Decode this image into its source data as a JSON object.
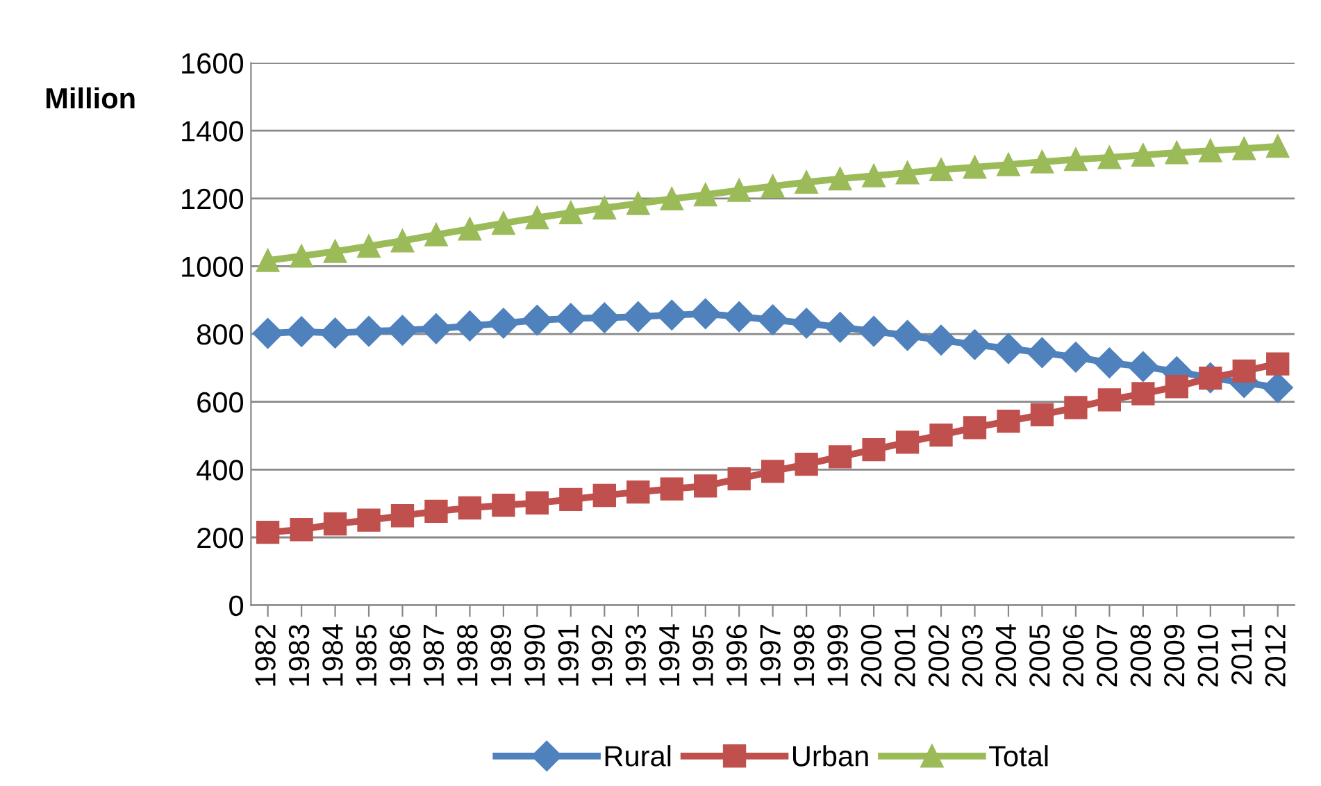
{
  "chart_data": {
    "type": "line",
    "ylabel": "Million",
    "categories": [
      "1982",
      "1983",
      "1984",
      "1985",
      "1986",
      "1987",
      "1988",
      "1989",
      "1990",
      "1991",
      "1992",
      "1993",
      "1994",
      "1995",
      "1996",
      "1997",
      "1998",
      "1999",
      "2000",
      "2001",
      "2002",
      "2003",
      "2004",
      "2005",
      "2006",
      "2007",
      "2008",
      "2009",
      "2010",
      "2011",
      "2012"
    ],
    "series": [
      {
        "name": "Rural",
        "color": "#4f81bd",
        "marker": "diamond",
        "values": [
          802,
          807,
          803,
          808,
          811,
          816,
          824,
          832,
          841,
          846,
          848,
          851,
          856,
          860,
          851,
          842,
          832,
          820,
          808,
          796,
          782,
          769,
          757,
          745,
          732,
          715,
          704,
          689,
          671,
          657,
          642
        ]
      },
      {
        "name": "Urban",
        "color": "#c0504d",
        "marker": "square",
        "values": [
          215,
          223,
          240,
          251,
          264,
          277,
          287,
          295,
          302,
          312,
          324,
          334,
          343,
          352,
          373,
          395,
          416,
          438,
          459,
          481,
          502,
          524,
          543,
          562,
          583,
          606,
          624,
          645,
          670,
          691,
          712
        ]
      },
      {
        "name": "Total",
        "color": "#9bbb59",
        "marker": "triangle",
        "values": [
          1017,
          1030,
          1044,
          1059,
          1075,
          1093,
          1110,
          1127,
          1143,
          1158,
          1172,
          1185,
          1199,
          1211,
          1224,
          1236,
          1248,
          1258,
          1267,
          1276,
          1285,
          1292,
          1300,
          1308,
          1315,
          1321,
          1328,
          1335,
          1341,
          1347,
          1354
        ]
      }
    ],
    "ylim": [
      0,
      1600
    ],
    "yticks": [
      0,
      200,
      400,
      600,
      800,
      1000,
      1200,
      1400,
      1600
    ],
    "grid": "y",
    "legend": "bottom",
    "line_style": "solid"
  }
}
